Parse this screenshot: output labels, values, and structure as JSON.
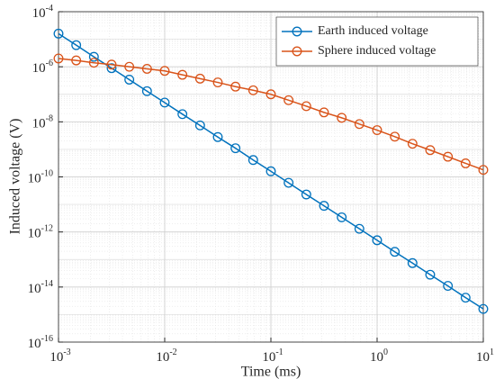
{
  "chart_data": {
    "type": "line",
    "xlabel": "Time (ms)",
    "ylabel": "Induced voltage (V)",
    "x": [
      0.001,
      0.0014678,
      0.0021544,
      0.0031623,
      0.0046416,
      0.0068129,
      0.01,
      0.014678,
      0.021544,
      0.031623,
      0.046416,
      0.068129,
      0.1,
      0.14678,
      0.21544,
      0.31623,
      0.46416,
      0.68129,
      1,
      1.4678,
      2.1544,
      3.1623,
      4.6416,
      6.8129,
      10
    ],
    "series": [
      {
        "name": "Earth induced voltage",
        "color": "#0072bd",
        "values": [
          1.6e-05,
          6.1e-06,
          2.3e-06,
          8.9e-07,
          3.4e-07,
          1.3e-07,
          5e-08,
          1.9e-08,
          7.4e-09,
          2.8e-09,
          1.1e-09,
          4.1e-10,
          1.6e-10,
          6.1e-11,
          2.3e-11,
          8.9e-12,
          3.4e-12,
          1.3e-12,
          5e-13,
          1.9e-13,
          7.4e-14,
          2.8e-14,
          1.1e-14,
          4.1e-15,
          1.6e-15
        ]
      },
      {
        "name": "Sphere induced voltage",
        "color": "#d95319",
        "values": [
          2e-06,
          1.7e-06,
          1.4e-06,
          1.2e-06,
          1e-06,
          8.4e-07,
          7.1e-07,
          5.1e-07,
          3.7e-07,
          2.7e-07,
          1.9e-07,
          1.4e-07,
          1e-07,
          6.1e-08,
          3.7e-08,
          2.2e-08,
          1.4e-08,
          8.3e-09,
          5e-09,
          2.9e-09,
          1.6e-09,
          9.4e-10,
          5.4e-10,
          3.1e-10,
          1.8e-10
        ]
      }
    ],
    "xlim": [
      0.001,
      10
    ],
    "ylim": [
      1e-16,
      0.0001
    ],
    "xticks": [
      {
        "value": 0.001,
        "label": "10",
        "power": "-3"
      },
      {
        "value": 0.01,
        "label": "10",
        "power": "-2"
      },
      {
        "value": 0.1,
        "label": "10",
        "power": "-1"
      },
      {
        "value": 1,
        "label": "10",
        "power": "0"
      },
      {
        "value": 10,
        "label": "10",
        "power": "1"
      }
    ],
    "yticks": [
      {
        "value": 1e-16,
        "label": "10",
        "power": "-16"
      },
      {
        "value": 1e-14,
        "label": "10",
        "power": "-14"
      },
      {
        "value": 1e-12,
        "label": "10",
        "power": "-12"
      },
      {
        "value": 1e-10,
        "label": "10",
        "power": "-10"
      },
      {
        "value": 1e-08,
        "label": "10",
        "power": "-8"
      },
      {
        "value": 1e-06,
        "label": "10",
        "power": "-6"
      },
      {
        "value": 0.0001,
        "label": "10",
        "power": "-4"
      }
    ],
    "xscale": "log",
    "yscale": "log",
    "grid": true,
    "legend": "upper right"
  }
}
